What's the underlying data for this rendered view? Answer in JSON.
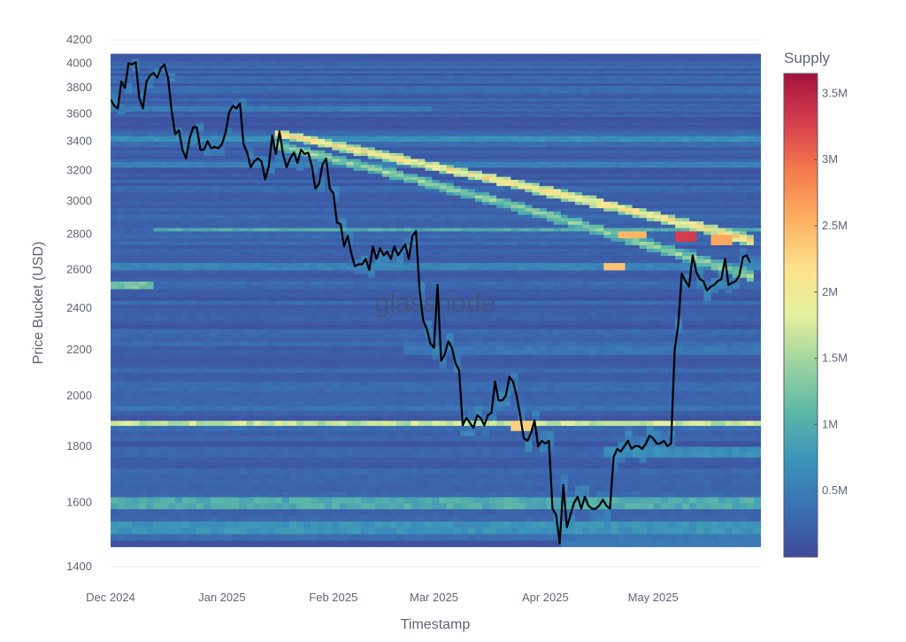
{
  "chart_data": {
    "type": "heatmap",
    "xlabel": "Timestamp",
    "ylabel": "Price Bucket (USD)",
    "x_range": [
      "2024-12-01",
      "2025-05-31"
    ],
    "ylim": [
      1400,
      4200
    ],
    "y_scale": "log",
    "x_ticks": [
      {
        "date": "2024-12-01",
        "label": "Dec 2024"
      },
      {
        "date": "2025-01-01",
        "label": "Jan 2025"
      },
      {
        "date": "2025-02-01",
        "label": "Feb 2025"
      },
      {
        "date": "2025-03-01",
        "label": "Mar 2025"
      },
      {
        "date": "2025-04-01",
        "label": "Apr 2025"
      },
      {
        "date": "2025-05-01",
        "label": "May 2025"
      }
    ],
    "y_ticks": [
      1400,
      1600,
      1800,
      2000,
      2200,
      2400,
      2600,
      2800,
      3000,
      3200,
      3400,
      3600,
      3800,
      4000,
      4200
    ],
    "y_tick_labels": [
      "1400",
      "1600",
      "1800",
      "2000",
      "2200",
      "2400",
      "2600",
      "2800",
      "3000",
      "3200",
      "3400",
      "3600",
      "3800",
      "4000",
      "4200"
    ],
    "colorbar": {
      "title": "Supply",
      "min": 0,
      "max": 3650000,
      "ticks": [
        500000,
        1000000,
        1500000,
        2000000,
        2500000,
        3000000,
        3500000
      ],
      "tick_labels": [
        "0.5M",
        "1M",
        "1.5M",
        "2M",
        "2.5M",
        "3M",
        "3.5M"
      ],
      "colors": [
        "#3f4a9a",
        "#3a6fb3",
        "#3b93ba",
        "#5cb7a8",
        "#9dd49f",
        "#e4f09c",
        "#fde08b",
        "#fdae61",
        "#f47a4c",
        "#d53e4f",
        "#a3123a"
      ]
    },
    "heatmap_y_range": [
      1450,
      4080
    ],
    "heatmap_price_bucket_start": 1460,
    "heatmap_price_bucket_step": 20,
    "heatmap_base_supply": 220000,
    "bands": [
      {
        "price": 1890,
        "start": "2024-12-01",
        "end": "2025-05-31",
        "supply": 1700000
      },
      {
        "price": 1600,
        "start": "2024-12-01",
        "end": "2025-05-31",
        "supply": 1000000
      },
      {
        "price": 1520,
        "start": "2024-12-01",
        "end": "2025-05-31",
        "supply": 750000
      },
      {
        "price": 2830,
        "start": "2024-12-12",
        "end": "2025-05-31",
        "supply": 1000000
      },
      {
        "price": 2520,
        "start": "2024-12-01",
        "end": "2024-12-12",
        "supply": 1300000
      },
      {
        "price": 3420,
        "start": "2024-12-01",
        "end": "2025-05-31",
        "supply": 700000
      },
      {
        "price": 3240,
        "start": "2024-12-01",
        "end": "2025-05-31",
        "supply": 550000
      },
      {
        "price": 2620,
        "start": "2024-12-01",
        "end": "2025-05-31",
        "supply": 600000
      },
      {
        "price": 3640,
        "start": "2024-12-01",
        "end": "2025-02-28",
        "supply": 500000
      },
      {
        "price": 3800,
        "start": "2024-12-01",
        "end": "2025-05-31",
        "supply": 350000
      },
      {
        "price": 2200,
        "start": "2025-02-20",
        "end": "2025-05-31",
        "supply": 450000
      },
      {
        "price": 1950,
        "start": "2024-12-01",
        "end": "2025-05-31",
        "supply": 420000
      },
      {
        "price": 1780,
        "start": "2025-04-18",
        "end": "2025-05-31",
        "supply": 700000
      },
      {
        "price": 1480,
        "start": "2025-04-10",
        "end": "2025-05-31",
        "supply": 450000
      }
    ],
    "ridges": [
      {
        "start_date": "2025-01-15",
        "start_price": 3460,
        "end_date": "2025-05-28",
        "end_price": 2770,
        "supply": 2300000
      },
      {
        "start_date": "2025-01-15",
        "start_price": 3380,
        "end_date": "2025-05-28",
        "end_price": 2570,
        "supply": 1500000
      }
    ],
    "hotspots": [
      {
        "date": "2025-05-10",
        "price": 2790,
        "supply": 3300000
      },
      {
        "date": "2025-05-20",
        "price": 2770,
        "supply": 2600000
      },
      {
        "date": "2025-04-25",
        "price": 2800,
        "supply": 2500000
      },
      {
        "date": "2025-04-20",
        "price": 2620,
        "supply": 2400000
      },
      {
        "date": "2025-03-25",
        "price": 1880,
        "supply": 2300000
      }
    ],
    "series": [
      {
        "type": "line",
        "color": "#000000",
        "points": [
          [
            "2024-12-01",
            3710
          ],
          [
            "2024-12-02",
            3660
          ],
          [
            "2024-12-03",
            3640
          ],
          [
            "2024-12-04",
            3850
          ],
          [
            "2024-12-05",
            3800
          ],
          [
            "2024-12-06",
            4000
          ],
          [
            "2024-12-07",
            3990
          ],
          [
            "2024-12-08",
            4010
          ],
          [
            "2024-12-09",
            3720
          ],
          [
            "2024-12-10",
            3640
          ],
          [
            "2024-12-11",
            3850
          ],
          [
            "2024-12-12",
            3900
          ],
          [
            "2024-12-13",
            3920
          ],
          [
            "2024-12-14",
            3880
          ],
          [
            "2024-12-15",
            3960
          ],
          [
            "2024-12-16",
            3990
          ],
          [
            "2024-12-17",
            3880
          ],
          [
            "2024-12-18",
            3620
          ],
          [
            "2024-12-19",
            3450
          ],
          [
            "2024-12-20",
            3480
          ],
          [
            "2024-12-21",
            3340
          ],
          [
            "2024-12-22",
            3280
          ],
          [
            "2024-12-23",
            3420
          ],
          [
            "2024-12-24",
            3500
          ],
          [
            "2024-12-25",
            3500
          ],
          [
            "2024-12-26",
            3340
          ],
          [
            "2024-12-27",
            3340
          ],
          [
            "2024-12-28",
            3400
          ],
          [
            "2024-12-29",
            3350
          ],
          [
            "2024-12-30",
            3360
          ],
          [
            "2024-12-31",
            3350
          ],
          [
            "2025-01-01",
            3380
          ],
          [
            "2025-01-02",
            3460
          ],
          [
            "2025-01-03",
            3610
          ],
          [
            "2025-01-04",
            3660
          ],
          [
            "2025-01-05",
            3640
          ],
          [
            "2025-01-06",
            3680
          ],
          [
            "2025-01-07",
            3380
          ],
          [
            "2025-01-08",
            3320
          ],
          [
            "2025-01-09",
            3220
          ],
          [
            "2025-01-10",
            3260
          ],
          [
            "2025-01-11",
            3280
          ],
          [
            "2025-01-12",
            3260
          ],
          [
            "2025-01-13",
            3140
          ],
          [
            "2025-01-14",
            3220
          ],
          [
            "2025-01-15",
            3440
          ],
          [
            "2025-01-16",
            3310
          ],
          [
            "2025-01-17",
            3470
          ],
          [
            "2025-01-18",
            3310
          ],
          [
            "2025-01-19",
            3220
          ],
          [
            "2025-01-20",
            3280
          ],
          [
            "2025-01-21",
            3320
          ],
          [
            "2025-01-22",
            3250
          ],
          [
            "2025-01-23",
            3340
          ],
          [
            "2025-01-24",
            3310
          ],
          [
            "2025-01-25",
            3320
          ],
          [
            "2025-01-26",
            3230
          ],
          [
            "2025-01-27",
            3080
          ],
          [
            "2025-01-28",
            3110
          ],
          [
            "2025-01-29",
            3240
          ],
          [
            "2025-01-30",
            3280
          ],
          [
            "2025-01-31",
            3080
          ],
          [
            "2025-02-01",
            3050
          ],
          [
            "2025-02-02",
            2870
          ],
          [
            "2025-02-03",
            2860
          ],
          [
            "2025-02-04",
            2730
          ],
          [
            "2025-02-05",
            2790
          ],
          [
            "2025-02-06",
            2690
          ],
          [
            "2025-02-07",
            2620
          ],
          [
            "2025-02-08",
            2630
          ],
          [
            "2025-02-09",
            2630
          ],
          [
            "2025-02-10",
            2660
          ],
          [
            "2025-02-11",
            2600
          ],
          [
            "2025-02-12",
            2730
          ],
          [
            "2025-02-13",
            2660
          ],
          [
            "2025-02-14",
            2720
          ],
          [
            "2025-02-15",
            2680
          ],
          [
            "2025-02-16",
            2700
          ],
          [
            "2025-02-17",
            2660
          ],
          [
            "2025-02-18",
            2730
          ],
          [
            "2025-02-19",
            2680
          ],
          [
            "2025-02-20",
            2710
          ],
          [
            "2025-02-21",
            2740
          ],
          [
            "2025-02-22",
            2660
          ],
          [
            "2025-02-23",
            2790
          ],
          [
            "2025-02-24",
            2820
          ],
          [
            "2025-02-25",
            2490
          ],
          [
            "2025-02-26",
            2340
          ],
          [
            "2025-02-27",
            2300
          ],
          [
            "2025-02-28",
            2230
          ],
          [
            "2025-03-01",
            2210
          ],
          [
            "2025-03-02",
            2520
          ],
          [
            "2025-03-03",
            2150
          ],
          [
            "2025-03-04",
            2180
          ],
          [
            "2025-03-05",
            2240
          ],
          [
            "2025-03-06",
            2210
          ],
          [
            "2025-03-07",
            2140
          ],
          [
            "2025-03-08",
            2110
          ],
          [
            "2025-03-09",
            1880
          ],
          [
            "2025-03-10",
            1910
          ],
          [
            "2025-03-11",
            1890
          ],
          [
            "2025-03-12",
            1870
          ],
          [
            "2025-03-13",
            1920
          ],
          [
            "2025-03-14",
            1910
          ],
          [
            "2025-03-15",
            1880
          ],
          [
            "2025-03-16",
            1920
          ],
          [
            "2025-03-17",
            1930
          ],
          [
            "2025-03-18",
            2060
          ],
          [
            "2025-03-19",
            1980
          ],
          [
            "2025-03-20",
            1980
          ],
          [
            "2025-03-21",
            2000
          ],
          [
            "2025-03-22",
            2080
          ],
          [
            "2025-03-23",
            2060
          ],
          [
            "2025-03-24",
            2000
          ],
          [
            "2025-03-25",
            1920
          ],
          [
            "2025-03-26",
            1830
          ],
          [
            "2025-03-27",
            1820
          ],
          [
            "2025-03-28",
            1850
          ],
          [
            "2025-03-29",
            1900
          ],
          [
            "2025-03-30",
            1800
          ],
          [
            "2025-03-31",
            1820
          ],
          [
            "2025-04-01",
            1810
          ],
          [
            "2025-04-02",
            1820
          ],
          [
            "2025-04-03",
            1580
          ],
          [
            "2025-04-04",
            1560
          ],
          [
            "2025-04-05",
            1470
          ],
          [
            "2025-04-06",
            1660
          ],
          [
            "2025-04-07",
            1520
          ],
          [
            "2025-04-08",
            1560
          ],
          [
            "2025-04-09",
            1600
          ],
          [
            "2025-04-10",
            1620
          ],
          [
            "2025-04-11",
            1580
          ],
          [
            "2025-04-12",
            1620
          ],
          [
            "2025-04-13",
            1590
          ],
          [
            "2025-04-14",
            1580
          ],
          [
            "2025-04-15",
            1580
          ],
          [
            "2025-04-16",
            1590
          ],
          [
            "2025-04-17",
            1610
          ],
          [
            "2025-04-18",
            1590
          ],
          [
            "2025-04-19",
            1580
          ],
          [
            "2025-04-20",
            1760
          ],
          [
            "2025-04-21",
            1790
          ],
          [
            "2025-04-22",
            1780
          ],
          [
            "2025-04-23",
            1800
          ],
          [
            "2025-04-24",
            1820
          ],
          [
            "2025-04-25",
            1790
          ],
          [
            "2025-04-26",
            1800
          ],
          [
            "2025-04-27",
            1800
          ],
          [
            "2025-04-28",
            1790
          ],
          [
            "2025-04-29",
            1810
          ],
          [
            "2025-04-30",
            1840
          ],
          [
            "2025-05-01",
            1830
          ],
          [
            "2025-05-02",
            1810
          ],
          [
            "2025-05-03",
            1810
          ],
          [
            "2025-05-04",
            1820
          ],
          [
            "2025-05-05",
            1800
          ],
          [
            "2025-05-06",
            1810
          ],
          [
            "2025-05-07",
            2200
          ],
          [
            "2025-05-08",
            2320
          ],
          [
            "2025-05-09",
            2580
          ],
          [
            "2025-05-10",
            2540
          ],
          [
            "2025-05-11",
            2510
          ],
          [
            "2025-05-12",
            2680
          ],
          [
            "2025-05-13",
            2590
          ],
          [
            "2025-05-14",
            2550
          ],
          [
            "2025-05-15",
            2540
          ],
          [
            "2025-05-16",
            2490
          ],
          [
            "2025-05-17",
            2510
          ],
          [
            "2025-05-18",
            2520
          ],
          [
            "2025-05-19",
            2540
          ],
          [
            "2025-05-20",
            2550
          ],
          [
            "2025-05-21",
            2660
          ],
          [
            "2025-05-22",
            2520
          ],
          [
            "2025-05-23",
            2530
          ],
          [
            "2025-05-24",
            2540
          ],
          [
            "2025-05-25",
            2570
          ],
          [
            "2025-05-26",
            2670
          ],
          [
            "2025-05-27",
            2680
          ],
          [
            "2025-05-28",
            2640
          ]
        ]
      }
    ],
    "watermark": "glassnode",
    "grid": true,
    "legend": "colorbar-right"
  }
}
